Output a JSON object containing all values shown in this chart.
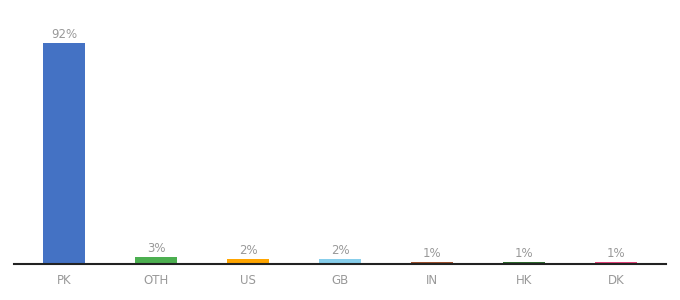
{
  "categories": [
    "PK",
    "OTH",
    "US",
    "GB",
    "IN",
    "HK",
    "DK"
  ],
  "values": [
    92,
    3,
    2,
    2,
    1,
    1,
    1
  ],
  "labels": [
    "92%",
    "3%",
    "2%",
    "2%",
    "1%",
    "1%",
    "1%"
  ],
  "bar_colors": [
    "#4472C4",
    "#4CAF50",
    "#FFA500",
    "#87CEEB",
    "#A0522D",
    "#2E6B2E",
    "#E6427A"
  ],
  "ylim": [
    0,
    100
  ],
  "background_color": "#ffffff",
  "label_fontsize": 8.5,
  "tick_fontsize": 8.5,
  "bar_width": 0.45
}
